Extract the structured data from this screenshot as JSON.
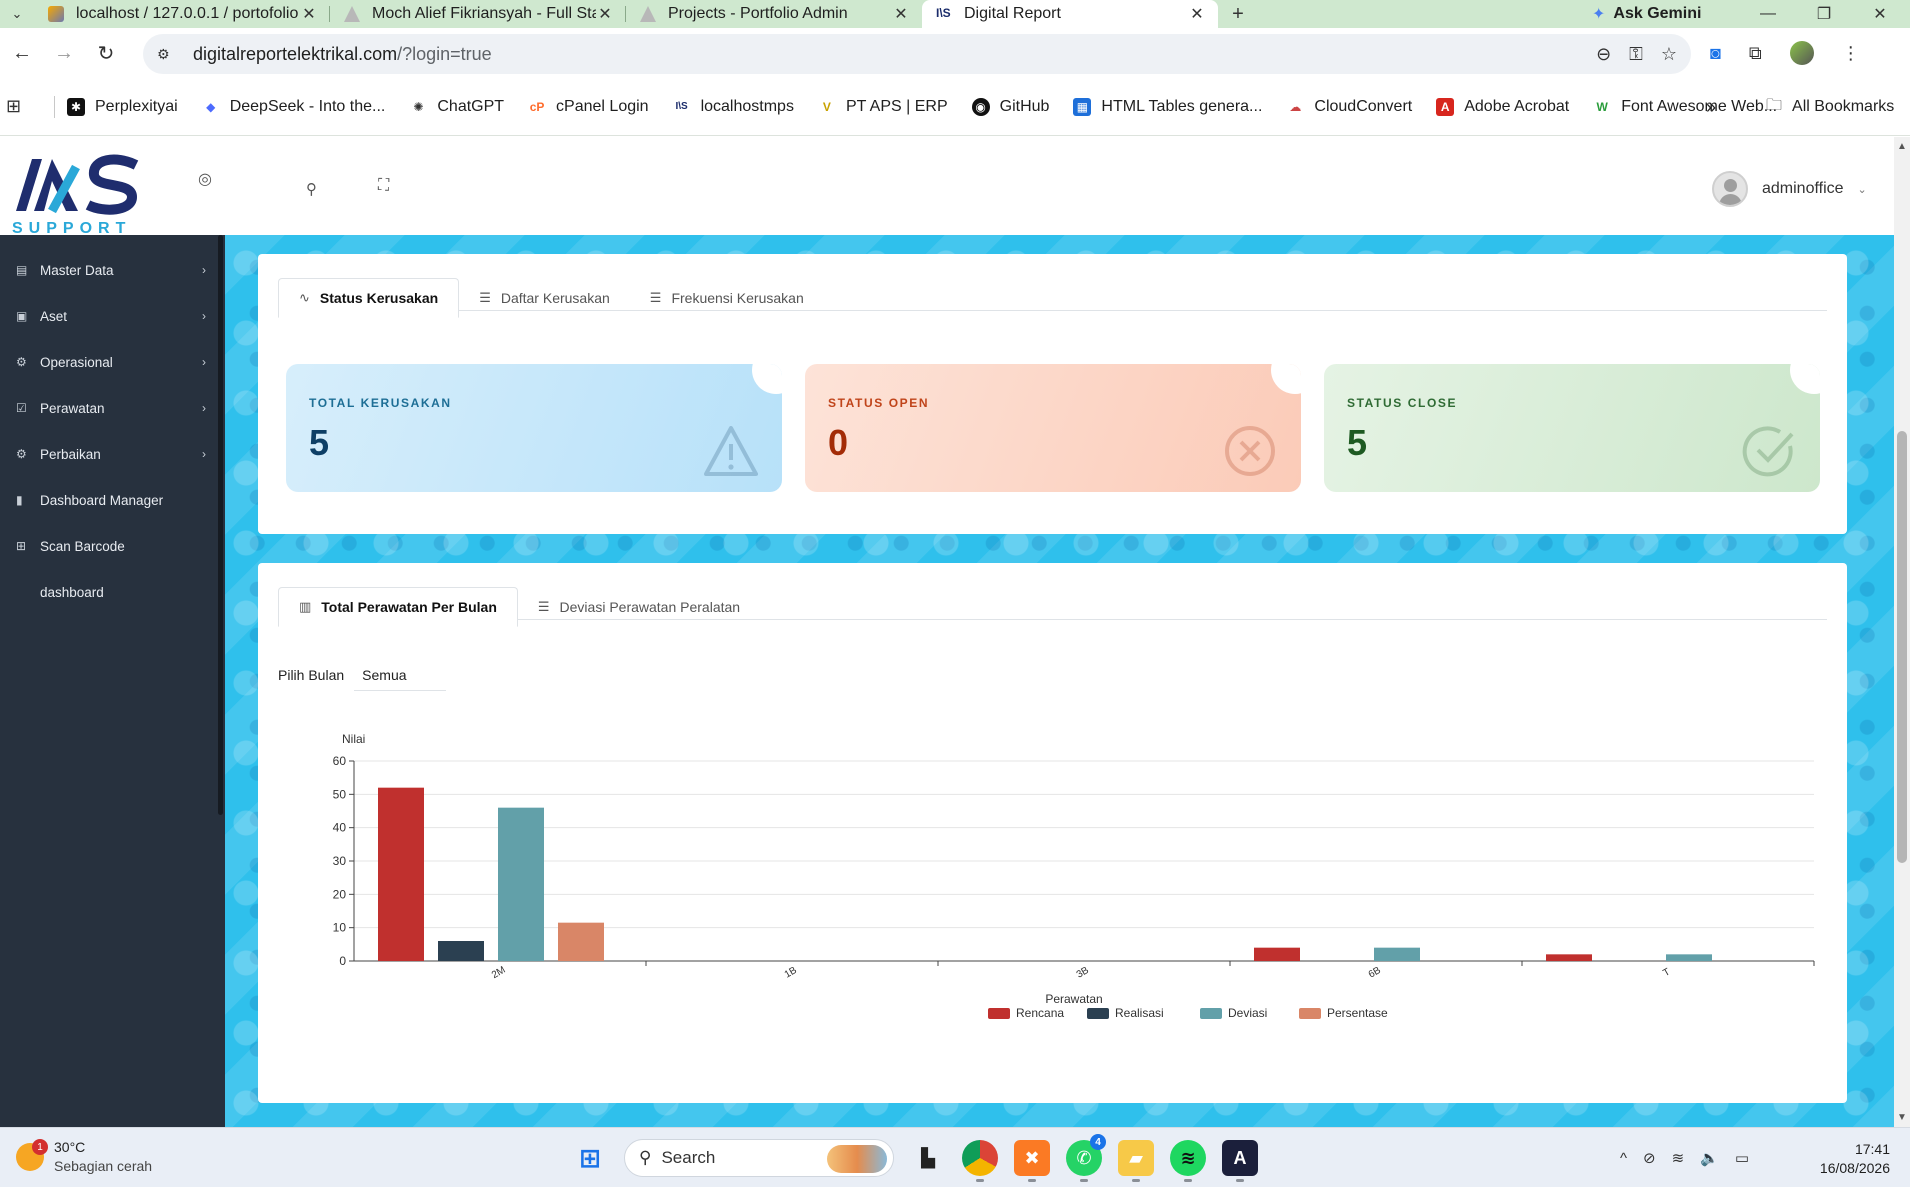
{
  "browser": {
    "tabs": [
      {
        "title": "localhost / 127.0.0.1 / portofolio",
        "active": false
      },
      {
        "title": "Moch Alief Fikriansyah - Full Stack",
        "active": false
      },
      {
        "title": "Projects - Portfolio Admin",
        "active": false
      },
      {
        "title": "Digital Report",
        "active": true
      }
    ],
    "ask_gemini": "Ask Gemini",
    "address": {
      "host": "digitalreportelektrikal.com",
      "path": "/?login=true"
    },
    "bookmarks": [
      {
        "label": "Perplexityai",
        "icon": "perplexity-icon"
      },
      {
        "label": "DeepSeek - Into the...",
        "icon": "deepseek-icon"
      },
      {
        "label": "ChatGPT",
        "icon": "chatgpt-icon"
      },
      {
        "label": "cPanel Login",
        "icon": "cpanel-icon"
      },
      {
        "label": "localhostmps",
        "icon": "ias-icon"
      },
      {
        "label": "PT APS | ERP",
        "icon": "aps-icon"
      },
      {
        "label": "GitHub",
        "icon": "github-icon"
      },
      {
        "label": "HTML Tables genera...",
        "icon": "table-icon"
      },
      {
        "label": "CloudConvert",
        "icon": "cloud-icon"
      },
      {
        "label": "Adobe Acrobat",
        "icon": "acrobat-icon"
      },
      {
        "label": "Font Awesome Web...",
        "icon": "fontawesome-icon"
      }
    ],
    "all_bookmarks": "All Bookmarks"
  },
  "header": {
    "logo_text": "SUPPORT",
    "username": "adminoffice"
  },
  "sidebar": {
    "items": [
      {
        "label": "Master Data",
        "icon": "book-icon",
        "has_children": true
      },
      {
        "label": "Aset",
        "icon": "briefcase-icon",
        "has_children": true
      },
      {
        "label": "Operasional",
        "icon": "cog-icon",
        "has_children": true
      },
      {
        "label": "Perawatan",
        "icon": "check-square-icon",
        "has_children": true
      },
      {
        "label": "Perbaikan",
        "icon": "settings-icon",
        "has_children": true
      },
      {
        "label": "Dashboard Manager",
        "icon": "bar-chart-icon",
        "has_children": false
      },
      {
        "label": "Scan Barcode",
        "icon": "grid-icon",
        "has_children": false
      },
      {
        "label": "dashboard",
        "icon": "",
        "has_children": false
      }
    ]
  },
  "status_card": {
    "tabs": [
      {
        "label": "Status Kerusakan",
        "icon": "activity-icon",
        "active": true
      },
      {
        "label": "Daftar Kerusakan",
        "icon": "list-icon",
        "active": false
      },
      {
        "label": "Frekuensi Kerusakan",
        "icon": "list-icon",
        "active": false
      }
    ],
    "stats": [
      {
        "label": "TOTAL KERUSAKAN",
        "value": "5",
        "icon": "warning-icon"
      },
      {
        "label": "STATUS OPEN",
        "value": "0",
        "icon": "x-circle-icon"
      },
      {
        "label": "STATUS CLOSE",
        "value": "5",
        "icon": "check-circle-icon"
      }
    ]
  },
  "maintenance_card": {
    "tabs": [
      {
        "label": "Total Perawatan Per Bulan",
        "icon": "bar-chart-icon",
        "active": true
      },
      {
        "label": "Deviasi Perawatan Peralatan",
        "icon": "list-icon",
        "active": false
      }
    ],
    "filter_label": "Pilih Bulan",
    "filter_value": "Semua"
  },
  "chart_data": {
    "type": "bar",
    "title": "",
    "xlabel": "Perawatan",
    "ylabel": "Nilai",
    "ylim": [
      0,
      60
    ],
    "yticks": [
      0,
      10,
      20,
      30,
      40,
      50,
      60
    ],
    "categories": [
      "2M",
      "1B",
      "3B",
      "6B",
      "T"
    ],
    "series": [
      {
        "name": "Rencana",
        "color": "#c0302e",
        "values": [
          52,
          0,
          0,
          4,
          2
        ]
      },
      {
        "name": "Realisasi",
        "color": "#2b4051",
        "values": [
          6,
          0,
          0,
          0,
          0
        ]
      },
      {
        "name": "Deviasi",
        "color": "#62a0a9",
        "values": [
          46,
          0,
          0,
          4,
          2
        ]
      },
      {
        "name": "Persentase",
        "color": "#d98667",
        "values": [
          11.5,
          0,
          0,
          0,
          0
        ]
      }
    ],
    "grid": true,
    "legend": "bottom"
  },
  "taskbar": {
    "weather_temp": "30°C",
    "weather_desc": "Sebagian cerah",
    "weather_badge": "1",
    "search_placeholder": "Search",
    "whatsapp_badge": "4",
    "time": "17:41",
    "date": "16/08/2026"
  }
}
